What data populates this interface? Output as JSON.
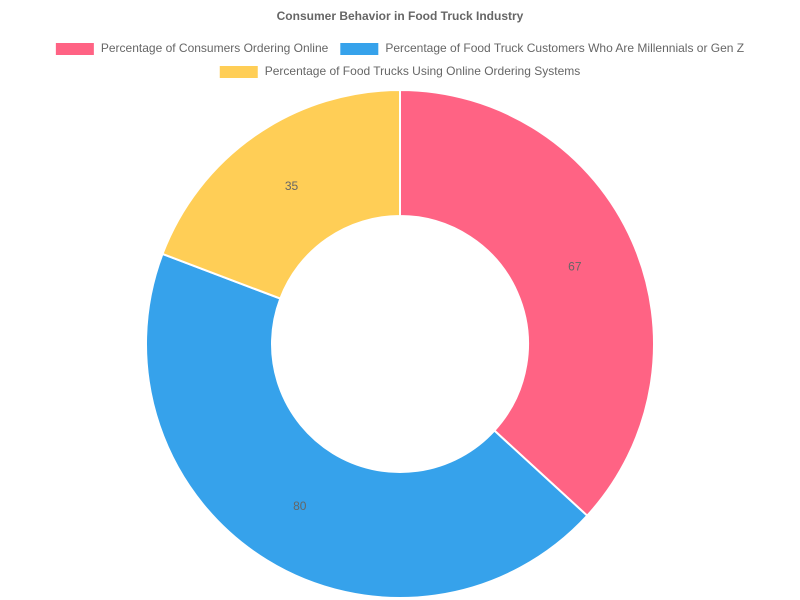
{
  "chart_data": {
    "type": "doughnut",
    "title": "Consumer Behavior in Food Truck Industry",
    "categories": [
      "Percentage of Consumers Ordering Online",
      "Percentage of Food Truck Customers Who Are Millennials or Gen Z",
      "Percentage of Food Trucks Using Online Ordering Systems"
    ],
    "values": [
      67,
      80,
      35
    ],
    "colors": [
      "#ff6384",
      "#36a2eb",
      "#ffce56"
    ],
    "legend": "top"
  }
}
